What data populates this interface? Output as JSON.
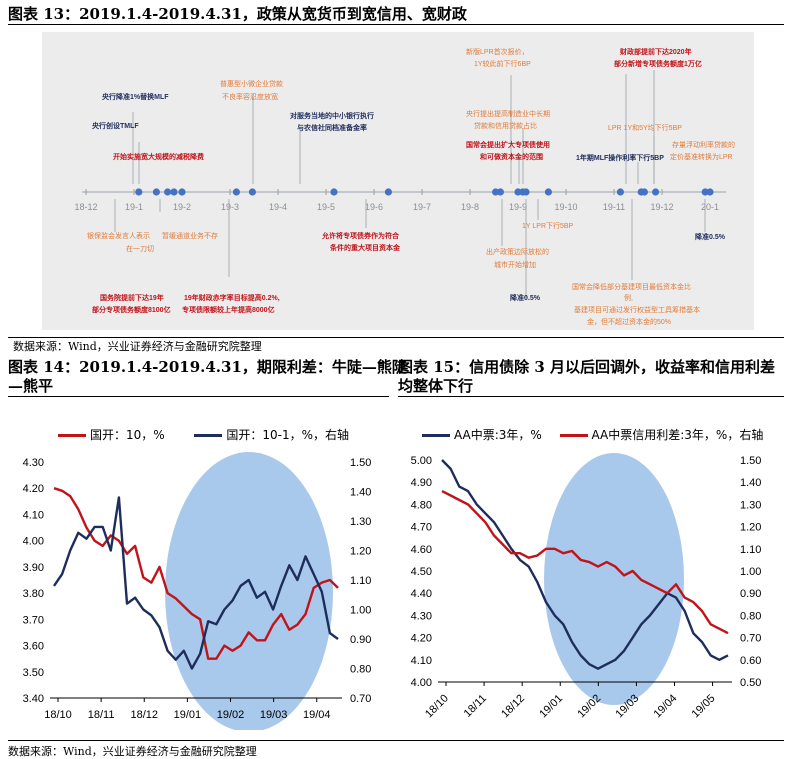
{
  "fig13": {
    "title": "图表 13：2019.1.4-2019.4.31，政策从宽货币到宽信用、宽财政",
    "axis_ticks": [
      "18-12",
      "19-1",
      "19-2",
      "19-3",
      "19-4",
      "19-5",
      "19-6",
      "19-7",
      "19-8",
      "19-9",
      "19-10",
      "19-11",
      "19-12",
      "20-1"
    ],
    "events": [
      {
        "text": "央行降准1%替换MLF",
        "color": "#1f2d5c",
        "bold": true
      },
      {
        "text": "央行创设TMLF",
        "color": "#1f2d5c",
        "bold": true
      },
      {
        "text": "开始实施宽大规模的减税降费",
        "color": "#c0141a",
        "bold": true
      },
      {
        "text": "普惠型小微企业贷款",
        "color": "#e07b39",
        "bold": false
      },
      {
        "text": "不良率容忍度放宽",
        "color": "#e07b39",
        "bold": false
      },
      {
        "text": "对服务当地的中小银行执行",
        "color": "#1f2d5c",
        "bold": true
      },
      {
        "text": "与农信社同档准备金率",
        "color": "#1f2d5c",
        "bold": true
      },
      {
        "text": "新版LPR首次报价，",
        "color": "#e07b39",
        "bold": false
      },
      {
        "text": "1Y较此前下行6BP",
        "color": "#e07b39",
        "bold": false
      },
      {
        "text": "央行提出提高制造业中长期",
        "color": "#e07b39",
        "bold": false
      },
      {
        "text": "贷款和信用贷款占比",
        "color": "#e07b39",
        "bold": false
      },
      {
        "text": "国常会提出扩大专项债使用",
        "color": "#c0141a",
        "bold": true
      },
      {
        "text": "和可做资本金的范围",
        "color": "#c0141a",
        "bold": true
      },
      {
        "text": "1年期MLF操作利率下行5BP",
        "color": "#1f2d5c",
        "bold": true
      },
      {
        "text": "财政部提前下达2020年",
        "color": "#c0141a",
        "bold": true
      },
      {
        "text": "部分新增专项债务额度1万亿",
        "color": "#c0141a",
        "bold": true
      },
      {
        "text": "LPR 1Y和5Y均下行5BP",
        "color": "#e07b39",
        "bold": false
      },
      {
        "text": "存量浮动利率贷款的",
        "color": "#e07b39",
        "bold": false
      },
      {
        "text": "定价基准转换为LPR",
        "color": "#e07b39",
        "bold": false
      },
      {
        "text": "银保监会发言人表示",
        "color": "#e07b39",
        "bold": false
      },
      {
        "text": "在一刀切",
        "color": "#e07b39",
        "bold": false
      },
      {
        "text": "暂缓通道业务不存",
        "color": "#e07b39",
        "bold": false
      },
      {
        "text": "国务院提前下达19年",
        "color": "#c0141a",
        "bold": true
      },
      {
        "text": "部分专项债务额度8100亿",
        "color": "#c0141a",
        "bold": true
      },
      {
        "text": "19年财政赤字率目标提高0.2%,",
        "color": "#c0141a",
        "bold": true
      },
      {
        "text": "专项债限额较上年提高8000亿",
        "color": "#c0141a",
        "bold": true
      },
      {
        "text": "允许将专项债券作为符合",
        "color": "#c0141a",
        "bold": true
      },
      {
        "text": "条件的重大项目资本金",
        "color": "#c0141a",
        "bold": true
      },
      {
        "text": "1Y LPR下行5BP",
        "color": "#e07b39",
        "bold": false
      },
      {
        "text": "出产政策边际放松的",
        "color": "#e07b39",
        "bold": false
      },
      {
        "text": "城市开始增加",
        "color": "#e07b39",
        "bold": false
      },
      {
        "text": "降准0.5%",
        "color": "#1f2d5c",
        "bold": true
      },
      {
        "text": "国常会降低部分基建项目最低资本金比",
        "color": "#e07b39",
        "bold": false
      },
      {
        "text": "例,",
        "color": "#e07b39",
        "bold": false
      },
      {
        "text": "基建项目可通过发行权益型工具筹措基本",
        "color": "#e07b39",
        "bold": false
      },
      {
        "text": "金，但不超过资本金的50%",
        "color": "#e07b39",
        "bold": false
      },
      {
        "text": "降准0.5%",
        "color": "#1f2d5c",
        "bold": true
      }
    ]
  },
  "source_top": "数据来源：Wind，兴业证券经济与金融研究院整理",
  "fig14": {
    "title_line1": "图表 14：2019.1.4-2019.4.31，期限利差：牛陡—熊陡",
    "title_line2": "—熊平",
    "legend": [
      "国开：10，%",
      "国开：10-1，%，右轴"
    ]
  },
  "fig15": {
    "title_line1": "图表 15：信用债除 3 月以后回调外，收益率和信用利差",
    "title_line2": "均整体下行",
    "legend": [
      "AA中票:3年，%",
      "AA中票信用利差:3年，%，右轴"
    ]
  },
  "source_bottom": "数据来源：Wind，兴业证券经济与金融研究院整理",
  "colors": {
    "red": "#c0141a",
    "navy": "#1f2d5c",
    "dot": "#4472c4",
    "orange": "#e07b39",
    "circle": "#a8c8ec",
    "panel": "#ececec"
  },
  "chart_data": [
    {
      "type": "timeline",
      "categories": [
        "18-12",
        "19-1",
        "19-2",
        "19-3",
        "19-4",
        "19-5",
        "19-6",
        "19-7",
        "19-8",
        "19-9",
        "19-10",
        "19-11",
        "19-12",
        "20-1"
      ],
      "event_dates": [
        "2019-01-04",
        "2019-01-15",
        "2019-01-22",
        "2019-01-26",
        "2019-02-01",
        "2019-03-05",
        "2019-03-15",
        "2019-05-06",
        "2019-06-10",
        "2019-08-17",
        "2019-08-20",
        "2019-08-31",
        "2019-09-04",
        "2019-09-06",
        "2019-09-20",
        "2019-11-05",
        "2019-11-18",
        "2019-11-20",
        "2019-11-27",
        "2019-12-28",
        "2020-01-01"
      ]
    },
    {
      "type": "line",
      "x_ticks": [
        "18/10",
        "18/11",
        "18/12",
        "19/01",
        "19/02",
        "19/03",
        "19/04"
      ],
      "ylim": [
        3.4,
        4.3
      ],
      "y2lim": [
        0.7,
        1.5
      ],
      "series": [
        {
          "name": "国开：10，%",
          "axis": "left",
          "color": "#c0141a",
          "values": [
            4.2,
            4.19,
            4.17,
            4.12,
            4.05,
            4.0,
            3.98,
            4.02,
            4.0,
            3.95,
            3.98,
            3.86,
            3.84,
            3.9,
            3.8,
            3.78,
            3.75,
            3.72,
            3.7,
            3.55,
            3.55,
            3.6,
            3.58,
            3.6,
            3.65,
            3.62,
            3.62,
            3.68,
            3.72,
            3.66,
            3.68,
            3.72,
            3.82,
            3.84,
            3.85,
            3.82
          ]
        },
        {
          "name": "国开：10-1，%，右轴",
          "axis": "right",
          "color": "#1f2d5c",
          "values": [
            1.08,
            1.12,
            1.2,
            1.26,
            1.24,
            1.28,
            1.28,
            1.2,
            1.38,
            1.02,
            1.04,
            1.0,
            0.98,
            0.94,
            0.86,
            0.83,
            0.86,
            0.8,
            0.85,
            0.96,
            0.95,
            1.0,
            1.03,
            1.08,
            1.1,
            1.04,
            1.06,
            1.0,
            1.08,
            1.15,
            1.1,
            1.18,
            1.12,
            1.06,
            0.92,
            0.9
          ]
        }
      ]
    },
    {
      "type": "line",
      "x_ticks": [
        "18/10",
        "18/11",
        "18/12",
        "19/01",
        "19/02",
        "19/03",
        "19/04",
        "19/05"
      ],
      "ylim": [
        4.0,
        5.0
      ],
      "y2lim": [
        0.5,
        1.5
      ],
      "series": [
        {
          "name": "AA中票:3年，%",
          "axis": "left",
          "color": "#1f2d5c",
          "values": [
            5.0,
            4.96,
            4.88,
            4.86,
            4.8,
            4.76,
            4.72,
            4.66,
            4.6,
            4.55,
            4.52,
            4.45,
            4.36,
            4.3,
            4.26,
            4.18,
            4.12,
            4.08,
            4.06,
            4.08,
            4.1,
            4.14,
            4.2,
            4.26,
            4.3,
            4.35,
            4.4,
            4.38,
            4.32,
            4.22,
            4.18,
            4.12,
            4.1,
            4.12
          ]
        },
        {
          "name": "AA中票信用利差:3年，%，右轴",
          "axis": "right",
          "color": "#c0141a",
          "values": [
            1.36,
            1.34,
            1.32,
            1.3,
            1.26,
            1.22,
            1.16,
            1.12,
            1.08,
            1.08,
            1.06,
            1.07,
            1.1,
            1.1,
            1.08,
            1.09,
            1.05,
            1.04,
            1.02,
            1.04,
            1.02,
            0.98,
            1.0,
            0.96,
            0.94,
            0.92,
            0.9,
            0.94,
            0.88,
            0.86,
            0.82,
            0.76,
            0.74,
            0.72
          ]
        }
      ]
    }
  ]
}
